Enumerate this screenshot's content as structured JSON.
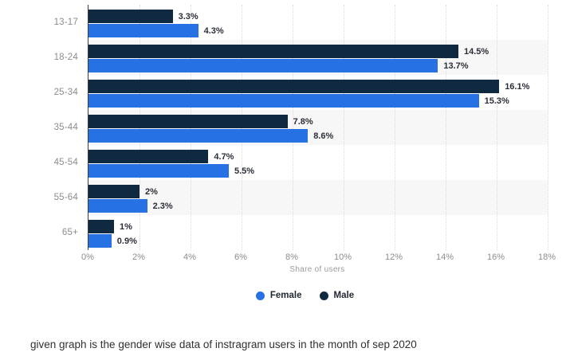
{
  "chart_data": {
    "type": "bar",
    "orientation": "horizontal",
    "title": "",
    "categories": [
      "13-17",
      "18-24",
      "25-34",
      "35-44",
      "45-54",
      "55-64",
      "65+"
    ],
    "series": [
      {
        "name": "Female",
        "color": "#2671e4",
        "values": [
          4.3,
          13.7,
          15.3,
          8.6,
          5.5,
          2.3,
          0.9
        ],
        "labels": [
          "4.3%",
          "13.7%",
          "15.3%",
          "8.6%",
          "5.5%",
          "2.3%",
          "0.9%"
        ]
      },
      {
        "name": "Male",
        "color": "#0f2a40",
        "values": [
          3.3,
          14.5,
          16.1,
          7.8,
          4.7,
          2,
          1
        ],
        "labels": [
          "3.3%",
          "14.5%",
          "16.1%",
          "7.8%",
          "4.7%",
          "2%",
          "1%"
        ]
      }
    ],
    "xlabel": "Share of users",
    "x_ticks": [
      "0%",
      "2%",
      "4%",
      "6%",
      "8%",
      "10%",
      "12%",
      "14%",
      "16%",
      "18%"
    ],
    "xlim": [
      0,
      18
    ],
    "grid": "vertical-dotted",
    "legend_position": "bottom",
    "bar_order_in_group": [
      "Male",
      "Female"
    ],
    "stripe_rows": [
      "18-24",
      "35-44",
      "55-64"
    ]
  },
  "caption": "given graph is the gender wise data of instragram users in the month of sep 2020"
}
